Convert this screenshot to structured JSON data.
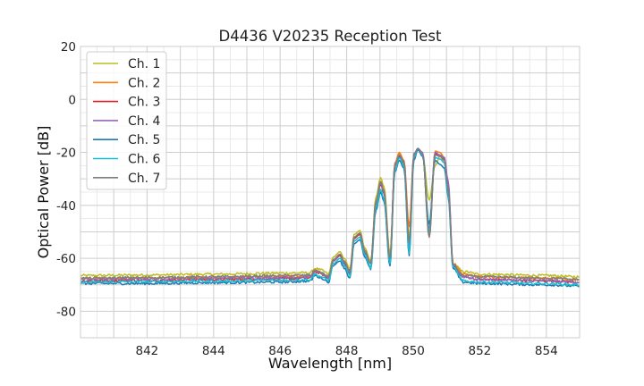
{
  "chart_data": {
    "type": "line",
    "title": "D4436 V20235 Reception Test",
    "xlabel": "Wavelength [nm]",
    "ylabel": "Optical Power [dB]",
    "xlim": [
      840,
      855
    ],
    "ylim": [
      -90,
      20
    ],
    "xticks": [
      842,
      844,
      846,
      848,
      850,
      852,
      854
    ],
    "yticks": [
      -80,
      -60,
      -40,
      -20,
      0,
      20
    ],
    "grid": true,
    "legend_position": "top-left",
    "series": [
      {
        "name": "Ch. 1",
        "color": "#bcbd22",
        "x": [
          840.0,
          842.0,
          844.0,
          846.0,
          846.9,
          847.05,
          847.25,
          847.45,
          847.6,
          847.8,
          847.92,
          848.1,
          848.22,
          848.4,
          848.54,
          848.72,
          848.88,
          849.02,
          849.12,
          849.3,
          849.45,
          849.58,
          849.72,
          849.88,
          850.02,
          850.14,
          850.28,
          850.48,
          850.66,
          850.8,
          850.94,
          851.05,
          851.2,
          851.5,
          852.0,
          854.0,
          855.0
        ],
        "y": [
          -66.5,
          -66.3,
          -66.0,
          -65.6,
          -65.5,
          -63.8,
          -64.5,
          -66,
          -59.5,
          -57.5,
          -60,
          -64,
          -51,
          -49.5,
          -56,
          -61,
          -37,
          -29.5,
          -33,
          -58,
          -26,
          -20.5,
          -24,
          -52,
          -22,
          -18.5,
          -21,
          -38,
          -25,
          -21.5,
          -24,
          -35,
          -62,
          -65,
          -66,
          -66.5,
          -67
        ]
      },
      {
        "name": "Ch. 2",
        "color": "#ff7f0e",
        "x": [
          840.0,
          842.0,
          844.0,
          846.0,
          846.9,
          847.05,
          847.25,
          847.45,
          847.6,
          847.8,
          847.92,
          848.1,
          848.22,
          848.4,
          848.54,
          848.72,
          848.88,
          849.02,
          849.12,
          849.3,
          849.45,
          849.58,
          849.72,
          849.88,
          850.02,
          850.14,
          850.28,
          850.48,
          850.66,
          850.8,
          850.94,
          851.05,
          851.2,
          851.5,
          852.0,
          854.0,
          855.0
        ],
        "y": [
          -67.5,
          -67.4,
          -67.2,
          -66.8,
          -66.6,
          -64.5,
          -65.5,
          -67,
          -60.5,
          -58.5,
          -61,
          -65,
          -52,
          -50.5,
          -57,
          -62,
          -38.5,
          -31,
          -34.5,
          -60,
          -24,
          -20,
          -23,
          -48,
          -20.5,
          -19,
          -20.5,
          -52,
          -19.5,
          -20,
          -22,
          -33,
          -62,
          -66,
          -67,
          -67.5,
          -68
        ]
      },
      {
        "name": "Ch. 3",
        "color": "#d62728",
        "x": [
          840.0,
          842.0,
          844.0,
          846.0,
          846.9,
          847.05,
          847.25,
          847.45,
          847.6,
          847.8,
          847.92,
          848.1,
          848.22,
          848.4,
          848.54,
          848.72,
          848.88,
          849.02,
          849.12,
          849.3,
          849.45,
          849.58,
          849.72,
          849.88,
          850.02,
          850.14,
          850.28,
          850.48,
          850.66,
          850.8,
          850.94,
          851.05,
          851.2,
          851.5,
          852.0,
          854.0,
          855.0
        ],
        "y": [
          -68.5,
          -68.3,
          -68.0,
          -67.7,
          -67.5,
          -65,
          -66,
          -67.5,
          -61,
          -59,
          -62,
          -66,
          -52.5,
          -51,
          -58,
          -62,
          -39.5,
          -32,
          -35.5,
          -61,
          -25,
          -21.5,
          -24,
          -55,
          -21,
          -18.5,
          -20.5,
          -50,
          -20.5,
          -21,
          -22.5,
          -34,
          -63,
          -67,
          -68,
          -68.5,
          -69
        ]
      },
      {
        "name": "Ch. 4",
        "color": "#9467bd",
        "x": [
          840.0,
          842.0,
          844.0,
          846.0,
          846.9,
          847.05,
          847.25,
          847.45,
          847.6,
          847.8,
          847.92,
          848.1,
          848.22,
          848.4,
          848.54,
          848.72,
          848.88,
          849.02,
          849.12,
          849.3,
          849.45,
          849.58,
          849.72,
          849.88,
          850.02,
          850.14,
          850.28,
          850.48,
          850.66,
          850.8,
          850.94,
          851.05,
          851.2,
          851.5,
          852.0,
          854.0,
          855.0
        ],
        "y": [
          -68.0,
          -67.8,
          -67.6,
          -67.3,
          -67.0,
          -64.8,
          -65.8,
          -67.5,
          -61,
          -58.5,
          -61.5,
          -65.5,
          -52,
          -50.5,
          -57,
          -62,
          -39,
          -31.5,
          -35,
          -60.5,
          -24.5,
          -21,
          -23.5,
          -56,
          -20.5,
          -18.5,
          -20,
          -49,
          -20,
          -21,
          -22,
          -31,
          -62.5,
          -67,
          -68,
          -68.5,
          -69
        ]
      },
      {
        "name": "Ch. 5",
        "color": "#1f77b4",
        "x": [
          840.0,
          842.0,
          844.0,
          846.0,
          846.9,
          847.05,
          847.25,
          847.45,
          847.6,
          847.8,
          847.92,
          848.1,
          848.22,
          848.4,
          848.54,
          848.72,
          848.88,
          849.02,
          849.12,
          849.3,
          849.45,
          849.58,
          849.72,
          849.88,
          850.02,
          850.14,
          850.28,
          850.48,
          850.66,
          850.8,
          850.94,
          851.05,
          851.2,
          851.5,
          852.0,
          854.0,
          855.0
        ],
        "y": [
          -69.5,
          -69.5,
          -69.2,
          -69.0,
          -68.6,
          -66.5,
          -67.5,
          -69,
          -62.5,
          -61,
          -63.5,
          -67.5,
          -54.5,
          -53,
          -59.5,
          -64,
          -42,
          -35,
          -38.5,
          -63,
          -27.5,
          -23,
          -26,
          -59,
          -23,
          -19,
          -21.5,
          -47,
          -23,
          -24.5,
          -26,
          -37,
          -64,
          -69,
          -69.5,
          -70,
          -70.5
        ]
      },
      {
        "name": "Ch. 6",
        "color": "#17becf",
        "x": [
          840.0,
          842.0,
          844.0,
          846.0,
          846.9,
          847.05,
          847.25,
          847.45,
          847.6,
          847.8,
          847.92,
          848.1,
          848.22,
          848.4,
          848.54,
          848.72,
          848.88,
          849.02,
          849.12,
          849.3,
          849.45,
          849.58,
          849.72,
          849.88,
          850.02,
          850.14,
          850.28,
          850.48,
          850.66,
          850.8,
          850.94,
          851.05,
          851.2,
          851.5,
          852.0,
          854.0,
          855.0
        ],
        "y": [
          -69.0,
          -68.8,
          -68.6,
          -68.3,
          -68.0,
          -66,
          -67,
          -68.5,
          -62,
          -60,
          -62.5,
          -66.5,
          -53.5,
          -52,
          -58.5,
          -63.5,
          -41,
          -34,
          -37.5,
          -62,
          -27,
          -22,
          -25,
          -58,
          -22,
          -18.5,
          -21,
          -50,
          -22,
          -22.5,
          -24,
          -36,
          -63.5,
          -68.5,
          -69,
          -69.5,
          -70
        ]
      },
      {
        "name": "Ch. 7",
        "color": "#7f7f7f",
        "x": [
          840.0,
          842.0,
          844.0,
          846.0,
          846.9,
          847.05,
          847.25,
          847.45,
          847.6,
          847.8,
          847.92,
          848.1,
          848.22,
          848.4,
          848.54,
          848.72,
          848.88,
          849.02,
          849.12,
          849.3,
          849.45,
          849.58,
          849.72,
          849.88,
          850.02,
          850.14,
          850.28,
          850.48,
          850.66,
          850.8,
          850.94,
          851.05,
          851.2,
          851.5,
          852.0,
          854.0,
          855.0
        ],
        "y": [
          -67.5,
          -67.3,
          -67.0,
          -66.6,
          -66.4,
          -64.5,
          -65.5,
          -67,
          -60.5,
          -58.5,
          -61,
          -65,
          -52,
          -50.5,
          -57,
          -62,
          -38.5,
          -31,
          -34.5,
          -60,
          -25,
          -21,
          -23.5,
          -54,
          -21,
          -18.5,
          -20.5,
          -52,
          -21,
          -21.5,
          -23,
          -34,
          -62.5,
          -66.5,
          -67,
          -67.5,
          -68
        ]
      }
    ]
  }
}
